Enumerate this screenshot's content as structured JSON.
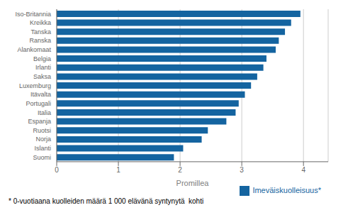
{
  "chart_data": {
    "type": "bar",
    "orientation": "horizontal",
    "categories": [
      "Suomi",
      "Islanti",
      "Norja",
      "Ruotsi",
      "Espanja",
      "Italia",
      "Portugali",
      "Itävalta",
      "Luxemburg",
      "Saksa",
      "Irlanti",
      "Belgia",
      "Alankomaat",
      "Ranska",
      "Tanska",
      "Kreikka",
      "Iso-Britannia"
    ],
    "series": [
      {
        "name": "Imeväiskuolleisuus*",
        "color": "#1464a0",
        "values": [
          1.9,
          2.05,
          2.35,
          2.45,
          2.75,
          2.9,
          2.95,
          3.05,
          3.15,
          3.25,
          3.35,
          3.4,
          3.55,
          3.6,
          3.7,
          3.8,
          3.95
        ]
      }
    ],
    "xlabel": "Promillea",
    "xlim": [
      0,
      4.4
    ],
    "xticks": [
      0,
      1,
      2,
      3,
      4
    ],
    "grid": true,
    "legend": "lower right",
    "annotations": [
      "* 0-vuotiaana kuolleiden määrä 1 000 elävänä syntynytä  kohti"
    ]
  }
}
